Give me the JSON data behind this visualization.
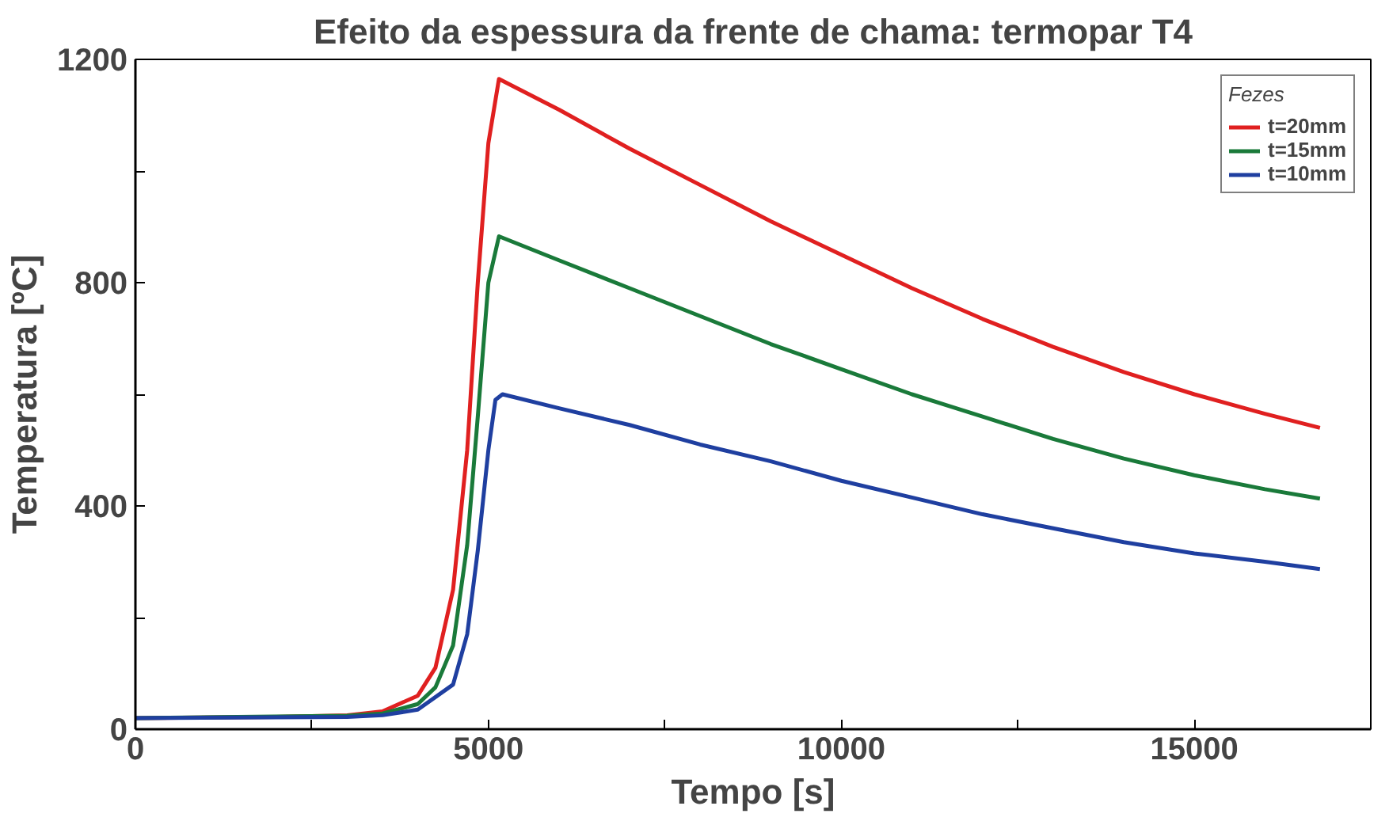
{
  "chart_data": {
    "type": "line",
    "title": "Efeito da espessura da frente de chama: termopar T4",
    "xlabel": "Tempo [s]",
    "ylabel": "Temperatura [ºC]",
    "legend_title": "Fezes",
    "legend": "top right",
    "grid": false,
    "line_style": "solid",
    "marker": "none",
    "xlim": [
      0,
      17500
    ],
    "ylim": [
      0,
      1200
    ],
    "xticks": [
      0,
      {
        "value": 2500,
        "label": null
      },
      5000,
      {
        "value": 7500,
        "label": null
      },
      10000,
      {
        "value": 12500,
        "label": null
      },
      15000
    ],
    "yticks": [
      0,
      {
        "value": 200,
        "label": null
      },
      400,
      {
        "value": 600,
        "label": null
      },
      800,
      {
        "value": 1000,
        "label": null
      },
      1200
    ],
    "series": [
      {
        "name": "t=20mm",
        "color": "#e02020",
        "x": [
          0,
          2000,
          3000,
          3500,
          4000,
          4250,
          4500,
          4700,
          4850,
          5000,
          5150,
          6000,
          7000,
          8000,
          9000,
          10000,
          11000,
          12000,
          13000,
          14000,
          15000,
          16000,
          16780
        ],
        "values": [
          20,
          22,
          25,
          32,
          60,
          110,
          250,
          500,
          800,
          1050,
          1165,
          1110,
          1040,
          975,
          910,
          850,
          790,
          735,
          685,
          640,
          600,
          565,
          540
        ]
      },
      {
        "name": "t=15mm",
        "color": "#1a7a3a",
        "x": [
          0,
          3000,
          3500,
          4000,
          4250,
          4500,
          4700,
          4850,
          5000,
          5150,
          6000,
          7000,
          8000,
          9000,
          10000,
          11000,
          12000,
          13000,
          14000,
          15000,
          16000,
          16780
        ],
        "values": [
          20,
          24,
          28,
          45,
          75,
          150,
          330,
          560,
          800,
          883,
          840,
          790,
          740,
          690,
          645,
          600,
          560,
          520,
          485,
          455,
          430,
          413
        ]
      },
      {
        "name": "t=10mm",
        "color": "#1f3fa0",
        "x": [
          0,
          3000,
          3500,
          4000,
          4500,
          4700,
          4850,
          5000,
          5100,
          5200,
          6000,
          7000,
          8000,
          9000,
          10000,
          11000,
          12000,
          13000,
          14000,
          15000,
          16000,
          16780
        ],
        "values": [
          20,
          22,
          25,
          35,
          80,
          170,
          320,
          500,
          590,
          600,
          575,
          545,
          510,
          480,
          445,
          415,
          385,
          360,
          335,
          315,
          300,
          287
        ]
      }
    ]
  }
}
